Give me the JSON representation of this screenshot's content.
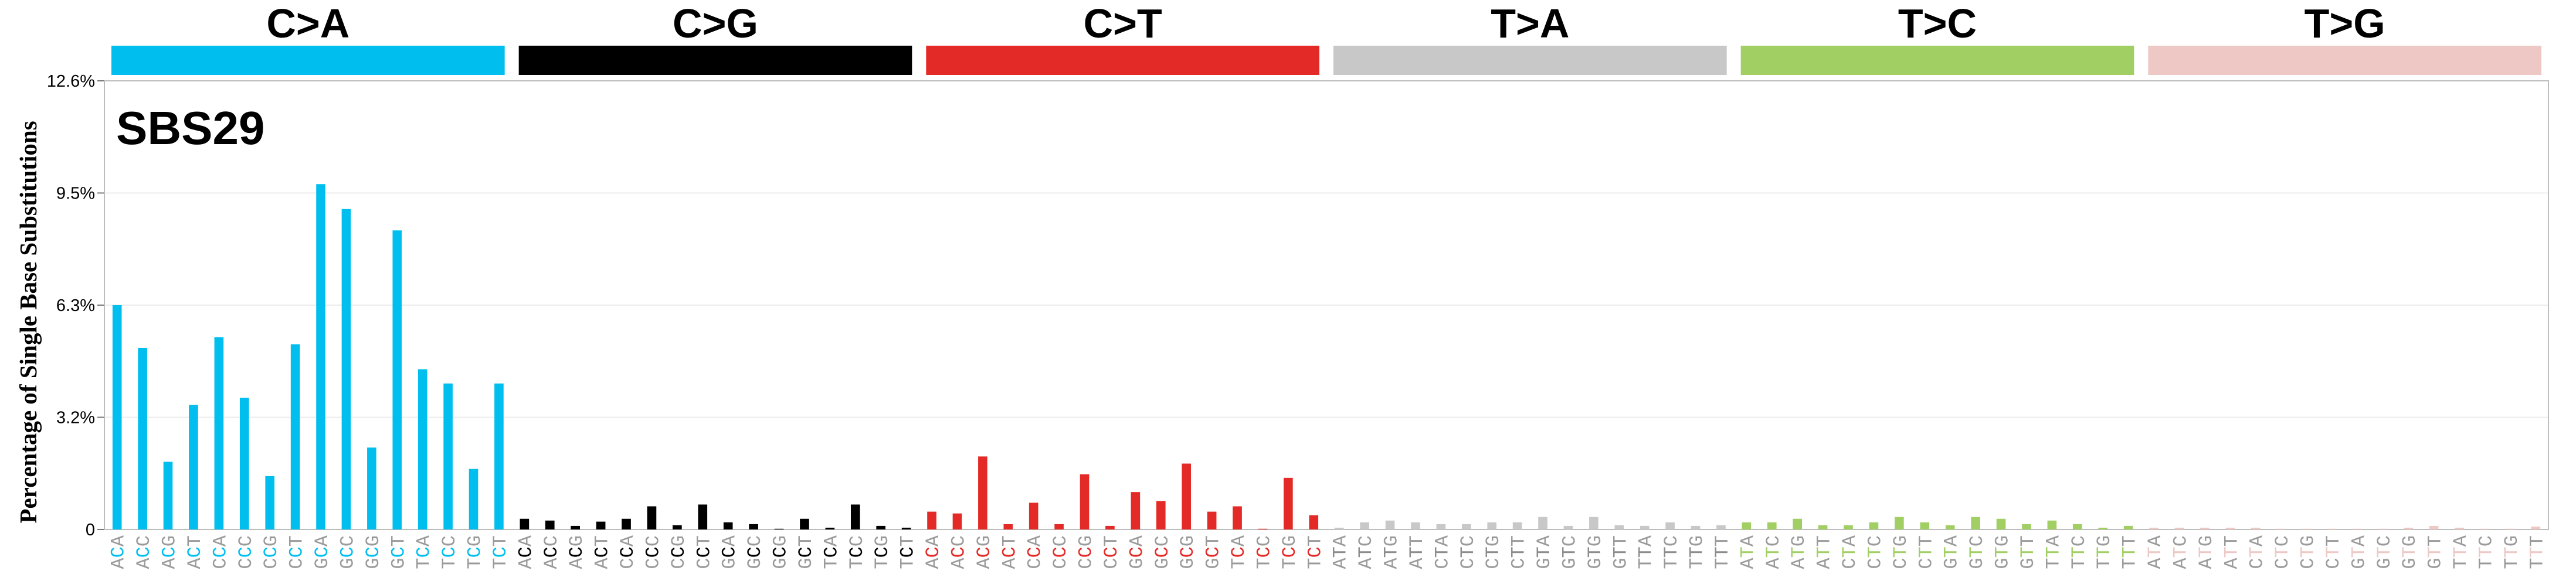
{
  "chart_data": {
    "type": "bar",
    "title": "SBS29",
    "ylabel": "Percentage of Single Base Substitutions",
    "ylim": [
      0,
      12.6
    ],
    "yticks": [
      "0",
      "3.2%",
      "6.3%",
      "9.5%",
      "12.6%"
    ],
    "grid": true,
    "category_groups": [
      {
        "name": "C>A",
        "color": "#00BFEF",
        "ref": "C",
        "contexts": [
          "ACA",
          "ACC",
          "ACG",
          "ACT",
          "CCA",
          "CCC",
          "CCG",
          "CCT",
          "GCA",
          "GCC",
          "GCG",
          "GCT",
          "TCA",
          "TCC",
          "TCG",
          "TCT"
        ],
        "values": [
          6.3,
          5.1,
          1.9,
          3.5,
          5.4,
          3.7,
          1.5,
          5.2,
          9.7,
          9.0,
          2.3,
          8.4,
          4.5,
          4.1,
          1.7,
          4.1
        ]
      },
      {
        "name": "C>G",
        "color": "#000000",
        "ref": "C",
        "contexts": [
          "ACA",
          "ACC",
          "ACG",
          "ACT",
          "CCA",
          "CCC",
          "CCG",
          "CCT",
          "GCA",
          "GCC",
          "GCG",
          "GCT",
          "TCA",
          "TCC",
          "TCG",
          "TCT"
        ],
        "values": [
          0.3,
          0.25,
          0.1,
          0.22,
          0.3,
          0.65,
          0.12,
          0.7,
          0.2,
          0.15,
          0.02,
          0.3,
          0.05,
          0.7,
          0.1,
          0.05
        ]
      },
      {
        "name": "C>T",
        "color": "#E42A26",
        "ref": "C",
        "contexts": [
          "ACA",
          "ACC",
          "ACG",
          "ACT",
          "CCA",
          "CCC",
          "CCG",
          "CCT",
          "GCA",
          "GCC",
          "GCG",
          "GCT",
          "TCA",
          "TCC",
          "TCG",
          "TCT"
        ],
        "values": [
          0.5,
          0.45,
          2.05,
          0.15,
          0.75,
          0.15,
          1.55,
          0.1,
          1.05,
          0.8,
          1.85,
          0.5,
          0.65,
          0.02,
          1.45,
          0.4
        ]
      },
      {
        "name": "T>A",
        "color": "#C8C8C8",
        "ref": "T",
        "contexts": [
          "ATA",
          "ATC",
          "ATG",
          "ATT",
          "CTA",
          "CTC",
          "CTG",
          "CTT",
          "GTA",
          "GTC",
          "GTG",
          "GTT",
          "TTA",
          "TTC",
          "TTG",
          "TTT"
        ],
        "values": [
          0.05,
          0.2,
          0.25,
          0.2,
          0.15,
          0.15,
          0.2,
          0.2,
          0.35,
          0.1,
          0.35,
          0.12,
          0.1,
          0.2,
          0.1,
          0.12
        ]
      },
      {
        "name": "T>C",
        "color": "#A1CF64",
        "ref": "T",
        "contexts": [
          "ATA",
          "ATC",
          "ATG",
          "ATT",
          "CTA",
          "CTC",
          "CTG",
          "CTT",
          "GTA",
          "GTC",
          "GTG",
          "GTT",
          "TTA",
          "TTC",
          "TTG",
          "TTT"
        ],
        "values": [
          0.2,
          0.2,
          0.3,
          0.12,
          0.12,
          0.2,
          0.35,
          0.2,
          0.12,
          0.35,
          0.3,
          0.15,
          0.25,
          0.15,
          0.05,
          0.1
        ]
      },
      {
        "name": "T>G",
        "color": "#EDC8C5",
        "ref": "T",
        "contexts": [
          "ATA",
          "ATC",
          "ATG",
          "ATT",
          "CTA",
          "CTC",
          "CTG",
          "CTT",
          "GTA",
          "GTC",
          "GTG",
          "GTT",
          "TTA",
          "TTC",
          "TTG",
          "TTT"
        ],
        "values": [
          0.05,
          0.05,
          0.05,
          0.05,
          0.05,
          0.02,
          0.02,
          0.02,
          0.02,
          0.02,
          0.05,
          0.1,
          0.05,
          0.02,
          0.02,
          0.08
        ]
      }
    ]
  }
}
